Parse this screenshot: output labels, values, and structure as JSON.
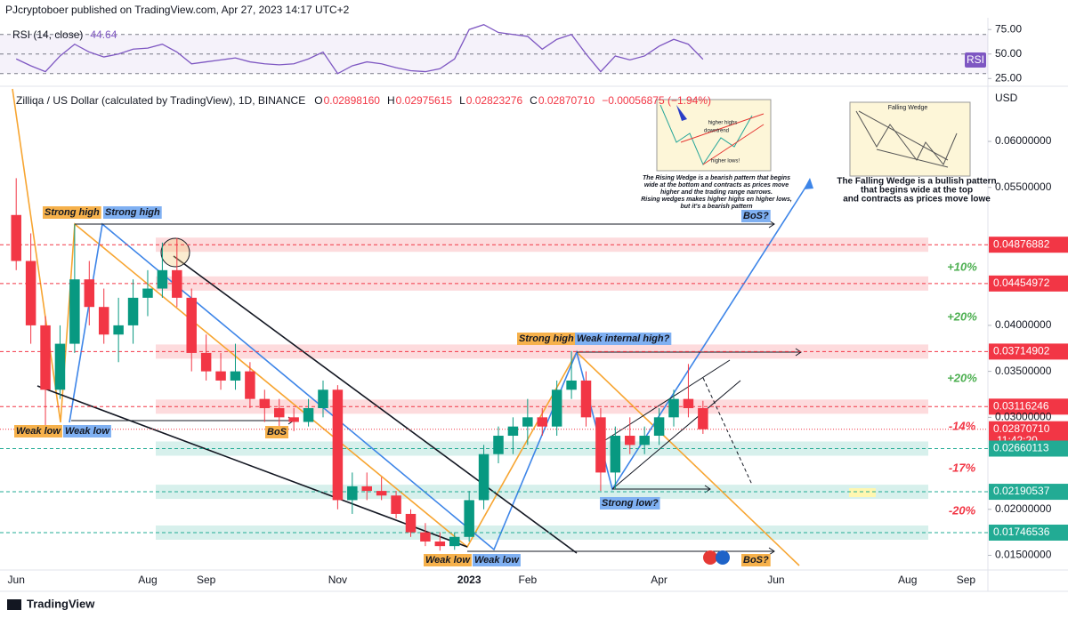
{
  "header": {
    "text": "PJcryptoboer published on TradingView.com, Apr 27, 2023 14:17 UTC+2"
  },
  "footer": {
    "brand": "TradingView"
  },
  "chart_data": {
    "type": "candlestick",
    "title": "Zilliqa / US Dollar (calculated by TradingView), 1D, BINANCE",
    "ohlc": [
      {
        "key": "O",
        "value": "0.02898160"
      },
      {
        "key": "H",
        "value": "0.02975615"
      },
      {
        "key": "L",
        "value": "0.02823276"
      },
      {
        "key": "C",
        "value": "0.02870710"
      }
    ],
    "change": "−0.00056875 (−1.94%)",
    "currency": "USD",
    "up_color": "#089981",
    "down_color": "#f23645",
    "categories": [
      "Jun",
      null,
      null,
      null,
      null,
      null,
      null,
      null,
      null,
      "Aug",
      null,
      null,
      null,
      "Sep",
      null,
      null,
      null,
      null,
      null,
      null,
      null,
      null,
      "Nov",
      null,
      null,
      null,
      null,
      null,
      null,
      null,
      null,
      "2023",
      null,
      null,
      null,
      "Feb",
      null,
      null,
      null,
      null,
      null,
      null,
      null,
      null,
      "Apr",
      null,
      null,
      null,
      null,
      null,
      null,
      null,
      "Jun",
      null,
      null,
      null,
      null,
      null,
      null,
      null,
      null,
      "Aug",
      null,
      null,
      null,
      "Sep",
      null
    ],
    "open": [
      0.052,
      0.047,
      0.04,
      0.033,
      0.038,
      0.045,
      0.042,
      0.039,
      0.04,
      0.043,
      0.044,
      0.046,
      0.043,
      0.037,
      0.035,
      0.034,
      0.035,
      0.032,
      0.031,
      0.03,
      0.0295,
      0.031,
      0.033,
      0.021,
      0.0225,
      0.022,
      0.0215,
      0.0195,
      0.0175,
      0.0165,
      0.016,
      0.017,
      0.021,
      0.026,
      0.028,
      0.029,
      0.03,
      0.029,
      0.033,
      0.034,
      0.03,
      0.024,
      0.028,
      0.027,
      0.028,
      0.03,
      0.032,
      0.031,
      null,
      null,
      null,
      null,
      null,
      null,
      null,
      null,
      null,
      null,
      null,
      null,
      null,
      null,
      null,
      null,
      null,
      null,
      null
    ],
    "high": [
      0.056,
      0.05,
      0.041,
      0.04,
      0.051,
      0.047,
      0.044,
      0.043,
      0.045,
      0.046,
      0.049,
      0.0495,
      0.044,
      0.039,
      0.037,
      0.038,
      0.036,
      0.033,
      0.032,
      0.031,
      0.032,
      0.034,
      0.0335,
      0.024,
      0.024,
      0.0235,
      0.022,
      0.02,
      0.0185,
      0.0175,
      0.0175,
      0.022,
      0.027,
      0.029,
      0.03,
      0.032,
      0.031,
      0.034,
      0.0372,
      0.035,
      0.031,
      0.029,
      0.03,
      0.029,
      0.031,
      0.033,
      0.0358,
      0.0318,
      null,
      null,
      null,
      null,
      null,
      null,
      null,
      null,
      null,
      null,
      null,
      null,
      null,
      null,
      null,
      null,
      null,
      null,
      null
    ],
    "low": [
      0.046,
      0.038,
      0.029,
      0.032,
      0.037,
      0.04,
      0.038,
      0.036,
      0.038,
      0.041,
      0.043,
      0.042,
      0.035,
      0.034,
      0.033,
      0.033,
      0.031,
      0.0295,
      0.029,
      0.0285,
      0.029,
      0.03,
      0.02,
      0.0195,
      0.021,
      0.021,
      0.019,
      0.017,
      0.016,
      0.0155,
      0.0156,
      0.0165,
      0.02,
      0.025,
      0.026,
      0.027,
      0.028,
      0.028,
      0.032,
      0.029,
      0.022,
      0.0222,
      0.026,
      0.026,
      0.027,
      0.029,
      0.03,
      0.0282,
      null,
      null,
      null,
      null,
      null,
      null,
      null,
      null,
      null,
      null,
      null,
      null,
      null,
      null,
      null,
      null,
      null,
      null,
      null
    ],
    "close": [
      0.047,
      0.04,
      0.033,
      0.038,
      0.045,
      0.042,
      0.039,
      0.04,
      0.043,
      0.044,
      0.046,
      0.043,
      0.037,
      0.035,
      0.034,
      0.035,
      0.032,
      0.031,
      0.03,
      0.0295,
      0.031,
      0.033,
      0.021,
      0.0225,
      0.022,
      0.0215,
      0.0195,
      0.0175,
      0.0165,
      0.016,
      0.017,
      0.021,
      0.026,
      0.028,
      0.029,
      0.03,
      0.029,
      0.033,
      0.034,
      0.03,
      0.024,
      0.028,
      0.027,
      0.028,
      0.03,
      0.032,
      0.031,
      0.0287,
      null,
      null,
      null,
      null,
      null,
      null,
      null,
      null,
      null,
      null,
      null,
      null,
      null,
      null,
      null,
      null,
      null,
      null,
      null
    ],
    "ylim": [
      0.0135,
      0.0659
    ],
    "yticks": [
      {
        "value": 0.06,
        "label": "0.06000000"
      },
      {
        "value": 0.055,
        "label": "0.05500000"
      },
      {
        "value": 0.04,
        "label": "0.04000000"
      },
      {
        "value": 0.035,
        "label": "0.03500000"
      },
      {
        "value": 0.03,
        "label": "0.03000000"
      },
      {
        "value": 0.02,
        "label": "0.02000000"
      },
      {
        "value": 0.015,
        "label": "0.01500000"
      }
    ],
    "levels": [
      {
        "value": 0.04876882,
        "label": "0.04876882",
        "color": "#f23645"
      },
      {
        "value": 0.04454972,
        "label": "0.04454972",
        "color": "#f23645"
      },
      {
        "value": 0.03714902,
        "label": "0.03714902",
        "color": "#f23645"
      },
      {
        "value": 0.03116246,
        "label": "0.03116246",
        "color": "#f23645"
      },
      {
        "value": 0.0287071,
        "label": "0.02870710",
        "color": "#f23645",
        "countdown": "11:42:20"
      },
      {
        "value": 0.02660113,
        "label": "0.02660113",
        "color": "#22ab94"
      },
      {
        "value": 0.02190537,
        "label": "0.02190537",
        "color": "#22ab94"
      },
      {
        "value": 0.01746536,
        "label": "0.01746536",
        "color": "#22ab94"
      }
    ],
    "percent_labels": [
      {
        "text": "+10%",
        "color": "#4caf50"
      },
      {
        "text": "+20%",
        "color": "#4caf50"
      },
      {
        "text": "+20%",
        "color": "#4caf50"
      },
      {
        "text": "-14%",
        "color": "#f23645"
      },
      {
        "text": "-17%",
        "color": "#f23645"
      },
      {
        "text": "-20%",
        "color": "#f23645"
      }
    ],
    "annotations": [
      {
        "text": "Strong high",
        "color": "#f6b14b"
      },
      {
        "text": "Strong high",
        "color": "#7fb0f2"
      },
      {
        "text": "BoS?",
        "color": "#7fb0f2"
      },
      {
        "text": "Strong high?",
        "color": "#f6b14b"
      },
      {
        "text": "Weak internal high?",
        "color": "#7fb0f2"
      },
      {
        "text": "Weak low",
        "color": "#f6b14b"
      },
      {
        "text": "Weak low",
        "color": "#7fb0f2"
      },
      {
        "text": "BoS",
        "color": "#f6b14b"
      },
      {
        "text": "Strong low?",
        "color": "#7fb0f2"
      },
      {
        "text": "Weak low",
        "color": "#f6b14b"
      },
      {
        "text": "Weak low",
        "color": "#7fb0f2"
      },
      {
        "text": "BoS?",
        "color": "#f6b14b"
      }
    ],
    "rising_wedge": {
      "tags": [
        "downtrend",
        "higher highs",
        "higher lows!"
      ],
      "text": [
        "The Rising Wedge is a bearish pattern that begins",
        "wide at the bottom and contracts as prices move",
        "higher and the trading range narrows.",
        "Rising wedges makes higher highs en higher lows,",
        "but it's a bearish pattern"
      ]
    },
    "falling_wedge": {
      "tag": "Falling Wedge",
      "text": [
        "The Falling Wedge is a bullish pattern",
        "that begins wide at the top",
        "and contracts as prices move lowe"
      ]
    },
    "rsi": {
      "type": "line",
      "title": "RSI (14, close)",
      "badge": "RSI",
      "color": "#7e57c2",
      "values": [
        45,
        38,
        32,
        48,
        60,
        52,
        47,
        50,
        55,
        56,
        60,
        52,
        40,
        42,
        44,
        46,
        42,
        40,
        39,
        40,
        45,
        52,
        30,
        38,
        42,
        40,
        36,
        33,
        32,
        35,
        45,
        75,
        80,
        72,
        70,
        68,
        55,
        65,
        70,
        50,
        32,
        48,
        44,
        48,
        58,
        65,
        60,
        44.64,
        null,
        null,
        null,
        null,
        null,
        null,
        null,
        null,
        null,
        null,
        null,
        null,
        null,
        null,
        null,
        null,
        null,
        null,
        null
      ],
      "ylim": [
        18,
        87
      ],
      "yticks": [
        {
          "value": 75,
          "label": "75.00"
        },
        {
          "value": 50,
          "label": "50.00"
        },
        {
          "value": 25,
          "label": "25.00"
        }
      ],
      "levels": [
        70,
        50,
        30
      ]
    }
  }
}
